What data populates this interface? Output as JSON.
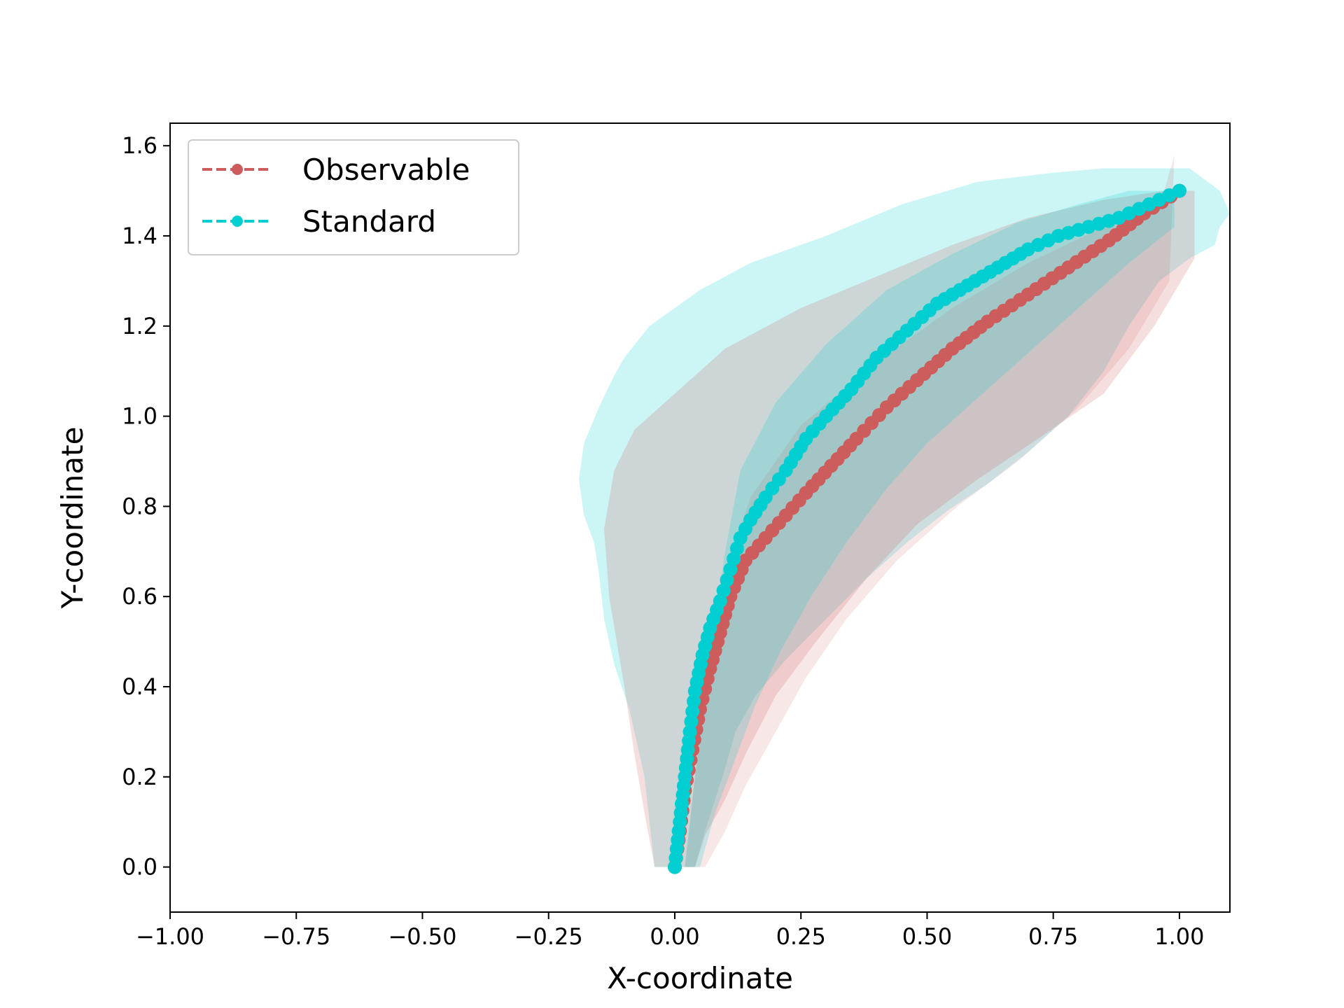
{
  "chart_data": {
    "type": "line",
    "xlabel": "X-coordinate",
    "ylabel": "Y-coordinate",
    "xlim": [
      -1.0,
      1.1
    ],
    "ylim": [
      -0.1,
      1.65
    ],
    "x_ticks": [
      -1.0,
      -0.75,
      -0.5,
      -0.25,
      0.0,
      0.25,
      0.5,
      0.75,
      1.0
    ],
    "x_tick_labels": [
      "−1.00",
      "−0.75",
      "−0.50",
      "−0.25",
      "0.00",
      "0.25",
      "0.50",
      "0.75",
      "1.00"
    ],
    "y_ticks": [
      0.0,
      0.2,
      0.4,
      0.6,
      0.8,
      1.0,
      1.2,
      1.4,
      1.6
    ],
    "y_tick_labels": [
      "0.0",
      "0.2",
      "0.4",
      "0.6",
      "0.8",
      "1.0",
      "1.2",
      "1.4",
      "1.6"
    ],
    "grid": false,
    "legend_position": "top-left",
    "series": [
      {
        "name": "Observable",
        "color": "#cd5c5c",
        "line_style": "dashed",
        "marker": "circle",
        "x": [
          0.0,
          0.01,
          0.02,
          0.035,
          0.05,
          0.07,
          0.09,
          0.11,
          0.14,
          0.18,
          0.22,
          0.26,
          0.31,
          0.36,
          0.42,
          0.48,
          0.55,
          0.62,
          0.7,
          0.78,
          0.86,
          0.93,
          1.0
        ],
        "y": [
          0.0,
          0.08,
          0.17,
          0.26,
          0.35,
          0.44,
          0.52,
          0.6,
          0.68,
          0.73,
          0.78,
          0.83,
          0.89,
          0.95,
          1.02,
          1.08,
          1.15,
          1.21,
          1.27,
          1.33,
          1.39,
          1.45,
          1.5
        ]
      },
      {
        "name": "Standard",
        "color": "#00ced1",
        "line_style": "dashed",
        "marker": "circle",
        "x": [
          0.0,
          0.01,
          0.02,
          0.03,
          0.04,
          0.055,
          0.07,
          0.09,
          0.11,
          0.13,
          0.15,
          0.18,
          0.22,
          0.26,
          0.3,
          0.35,
          0.4,
          0.46,
          0.52,
          0.58,
          0.64,
          0.7,
          0.76,
          0.82,
          0.88,
          0.94,
          1.0
        ],
        "y": [
          0.0,
          0.1,
          0.2,
          0.3,
          0.39,
          0.47,
          0.53,
          0.59,
          0.66,
          0.73,
          0.77,
          0.82,
          0.88,
          0.95,
          1.0,
          1.06,
          1.13,
          1.19,
          1.25,
          1.29,
          1.33,
          1.37,
          1.4,
          1.42,
          1.44,
          1.47,
          1.5
        ]
      }
    ],
    "bands": [
      {
        "series": "Standard",
        "color": "#00ced1",
        "opacity": 0.2,
        "x": [
          -0.04,
          -0.06,
          -0.09,
          -0.12,
          -0.14,
          -0.15,
          -0.16,
          -0.18,
          -0.19,
          -0.18,
          -0.15,
          -0.12,
          -0.1,
          -0.05,
          0.05,
          0.15,
          0.3,
          0.45,
          0.6,
          0.75,
          0.85,
          0.95,
          1.02,
          1.08,
          1.1,
          1.08,
          1.07,
          1.02,
          0.96,
          0.9,
          0.85,
          0.78,
          0.7,
          0.62,
          0.54,
          0.46,
          0.38,
          0.3,
          0.22,
          0.16,
          0.12,
          0.1,
          0.08,
          0.06,
          0.04
        ],
        "y": [
          0.0,
          0.2,
          0.35,
          0.45,
          0.55,
          0.65,
          0.72,
          0.78,
          0.86,
          0.94,
          1.02,
          1.09,
          1.13,
          1.2,
          1.28,
          1.34,
          1.4,
          1.47,
          1.52,
          1.54,
          1.55,
          1.55,
          1.55,
          1.5,
          1.45,
          1.42,
          1.38,
          1.35,
          1.3,
          1.2,
          1.1,
          1.0,
          0.92,
          0.85,
          0.79,
          0.72,
          0.64,
          0.55,
          0.46,
          0.38,
          0.3,
          0.22,
          0.15,
          0.08,
          0.0
        ]
      },
      {
        "series": "Observable",
        "color": "#cd5c5c",
        "opacity": 0.2,
        "x": [
          -0.04,
          -0.06,
          -0.08,
          -0.1,
          -0.13,
          -0.14,
          -0.12,
          -0.08,
          0.0,
          0.1,
          0.25,
          0.4,
          0.55,
          0.7,
          0.85,
          0.97,
          1.03,
          1.03,
          0.95,
          0.85,
          0.72,
          0.6,
          0.48,
          0.38,
          0.28,
          0.2,
          0.14,
          0.1,
          0.06,
          0.04
        ],
        "y": [
          0.0,
          0.12,
          0.25,
          0.4,
          0.6,
          0.75,
          0.88,
          0.97,
          1.05,
          1.15,
          1.24,
          1.31,
          1.38,
          1.44,
          1.48,
          1.5,
          1.5,
          1.35,
          1.2,
          1.05,
          0.95,
          0.86,
          0.76,
          0.64,
          0.5,
          0.38,
          0.25,
          0.15,
          0.07,
          0.0
        ]
      },
      {
        "series": "Observable",
        "color": "#cd5c5c",
        "opacity": 0.15,
        "x": [
          0.02,
          0.04,
          0.06,
          0.08,
          0.1,
          0.15,
          0.25,
          0.4,
          0.55,
          0.7,
          0.85,
          0.97,
          0.99,
          0.98,
          0.9,
          0.8,
          0.68,
          0.56,
          0.44,
          0.34,
          0.26,
          0.2,
          0.14,
          0.1,
          0.06
        ],
        "y": [
          0.0,
          0.2,
          0.4,
          0.55,
          0.65,
          0.82,
          0.98,
          1.12,
          1.24,
          1.34,
          1.42,
          1.5,
          1.58,
          1.3,
          1.15,
          1.02,
          0.9,
          0.8,
          0.68,
          0.55,
          0.42,
          0.3,
          0.18,
          0.08,
          0.0
        ]
      },
      {
        "series": "Standard",
        "color": "#00ced1",
        "opacity": 0.2,
        "x": [
          0.02,
          0.04,
          0.06,
          0.08,
          0.1,
          0.13,
          0.2,
          0.3,
          0.42,
          0.55,
          0.68,
          0.8,
          0.9,
          0.99,
          0.99,
          0.9,
          0.8,
          0.7,
          0.6,
          0.5,
          0.42,
          0.34,
          0.27,
          0.21,
          0.16,
          0.12,
          0.08,
          0.05
        ],
        "y": [
          0.0,
          0.2,
          0.38,
          0.55,
          0.7,
          0.88,
          1.03,
          1.16,
          1.28,
          1.36,
          1.43,
          1.47,
          1.5,
          1.5,
          1.42,
          1.34,
          1.24,
          1.14,
          1.04,
          0.94,
          0.84,
          0.72,
          0.6,
          0.48,
          0.36,
          0.24,
          0.12,
          0.0
        ]
      }
    ]
  }
}
